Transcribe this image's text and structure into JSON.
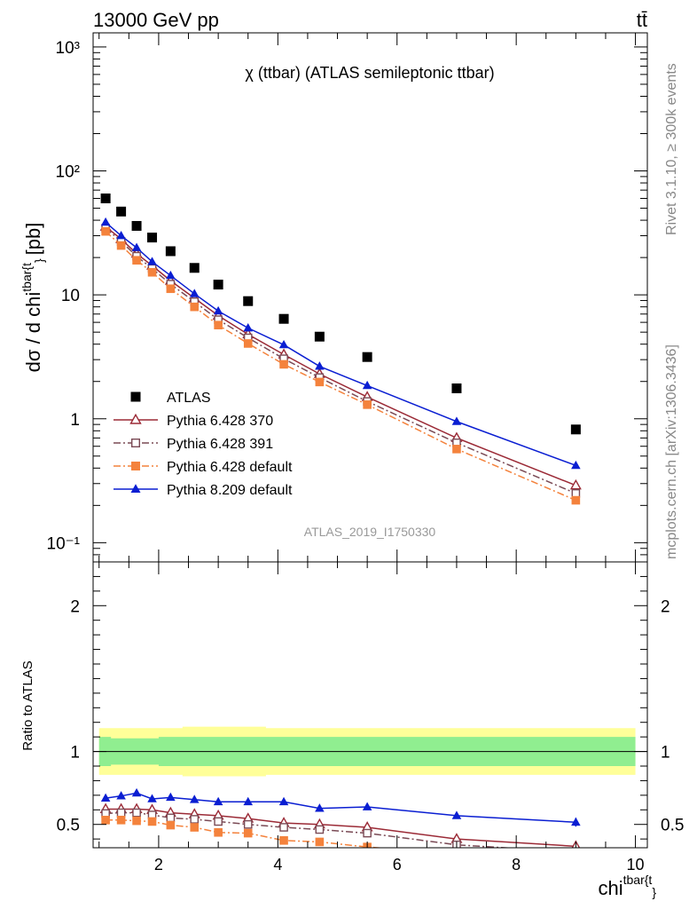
{
  "header": {
    "left": "13000 GeV pp",
    "right": "tt̄"
  },
  "side_labels": {
    "rivet": "Rivet 3.1.10, ≥ 300k events",
    "mcplots": "mcplots.cern.ch [arXiv:1306.3436]"
  },
  "chart_data": {
    "type": "scatter",
    "title": "χ (ttbar) (ATLAS semileptonic ttbar)",
    "analysis_id": "ATLAS_2019_I1750330",
    "xlabel": "chi",
    "xlabel_sup": "tbar{t",
    "xlabel_sub": "}",
    "ylabel": "dσ / d chi",
    "ylabel_sup": "tbar{t",
    "ylabel_sub": "}",
    "ylabel_unit": "[pb]",
    "ratio_ylabel": "Ratio to ATLAS",
    "xlim": [
      0.9,
      10.2
    ],
    "ylim": [
      0.07,
      1300
    ],
    "yscale": "log",
    "ratio_ylim": [
      0.34,
      2.3
    ],
    "x_ticks": [
      "2",
      "4",
      "6",
      "8",
      "10"
    ],
    "x_tick_values": [
      2,
      4,
      6,
      8,
      10
    ],
    "y_ticks": [
      "10⁻¹",
      "1",
      "10",
      "10²",
      "10³"
    ],
    "y_tick_values": [
      0.1,
      1,
      10,
      100,
      1000
    ],
    "ratio_ticks": [
      "0.5",
      "1",
      "2"
    ],
    "ratio_tick_values": [
      0.5,
      1,
      2
    ],
    "x": [
      1.11,
      1.37,
      1.63,
      1.89,
      2.2,
      2.6,
      3.0,
      3.5,
      4.1,
      4.7,
      5.5,
      7.0,
      9.0
    ],
    "x_edges": [
      1.0,
      1.2,
      1.5,
      1.75,
      2.0,
      2.4,
      2.8,
      3.25,
      3.8,
      4.4,
      5.1,
      6.0,
      8.0,
      10.0
    ],
    "legend_position": "bottom-left",
    "grid": false,
    "series": [
      {
        "name": "ATLAS",
        "color": "#000000",
        "marker": "square-filled",
        "line": "none",
        "values": [
          60,
          47,
          36,
          29,
          22.5,
          16.5,
          12.1,
          8.9,
          6.4,
          4.6,
          3.15,
          1.76,
          0.82
        ]
      },
      {
        "name": "Pythia 6.428 370",
        "color": "#9b2a36",
        "marker": "triangle-open",
        "line": "solid",
        "values": [
          35.5,
          28.2,
          21.5,
          17.2,
          13.0,
          9.4,
          6.8,
          4.8,
          3.3,
          2.3,
          1.5,
          0.7,
          0.29
        ],
        "ratio": [
          0.605,
          0.605,
          0.605,
          0.6,
          0.58,
          0.57,
          0.56,
          0.54,
          0.51,
          0.5,
          0.48,
          0.4,
          0.35
        ]
      },
      {
        "name": "Pythia 6.428 391",
        "color": "#7a4a55",
        "marker": "square-open",
        "line": "dashdot",
        "values": [
          34.5,
          27.0,
          20.5,
          16.3,
          12.2,
          8.8,
          6.3,
          4.5,
          3.05,
          2.15,
          1.38,
          0.64,
          0.25
        ],
        "ratio": [
          0.575,
          0.58,
          0.58,
          0.565,
          0.545,
          0.535,
          0.52,
          0.5,
          0.48,
          0.465,
          0.44,
          0.36,
          0.31
        ]
      },
      {
        "name": "Pythia 6.428 default",
        "color": "#f4823c",
        "marker": "square-filled",
        "line": "dashdot",
        "values": [
          32.5,
          25.0,
          19.0,
          15.2,
          11.2,
          8.0,
          5.7,
          4.05,
          2.75,
          1.98,
          1.3,
          0.57,
          0.22
        ],
        "ratio": [
          0.53,
          0.53,
          0.525,
          0.52,
          0.495,
          0.48,
          0.445,
          0.44,
          0.39,
          0.38,
          0.345,
          0.3,
          0.27
        ]
      },
      {
        "name": "Pythia 8.209 default",
        "color": "#0a1ed2",
        "marker": "triangle-filled",
        "line": "solid",
        "values": [
          38.5,
          30.0,
          24.0,
          18.5,
          14.3,
          10.2,
          7.4,
          5.4,
          3.95,
          2.65,
          1.85,
          0.95,
          0.42
        ],
        "ratio": [
          0.68,
          0.695,
          0.715,
          0.675,
          0.685,
          0.67,
          0.655,
          0.655,
          0.655,
          0.61,
          0.62,
          0.56,
          0.515
        ],
        "ratio_err": [
          0.01,
          0.01,
          0.01,
          0.01,
          0.01,
          0.01,
          0.01,
          0.01,
          0.015,
          0.02,
          0.02,
          0.015,
          0.03
        ]
      }
    ],
    "uncertainty_bands": {
      "inner_color": "#90ee90",
      "outer_color": "#ffff99",
      "inner_half_width": [
        0.1,
        0.09,
        0.09,
        0.09,
        0.1,
        0.1,
        0.1,
        0.1,
        0.1,
        0.1,
        0.1,
        0.1,
        0.1
      ],
      "outer_half_width": [
        0.16,
        0.16,
        0.16,
        0.16,
        0.16,
        0.17,
        0.17,
        0.17,
        0.16,
        0.16,
        0.16,
        0.16,
        0.16
      ]
    }
  }
}
